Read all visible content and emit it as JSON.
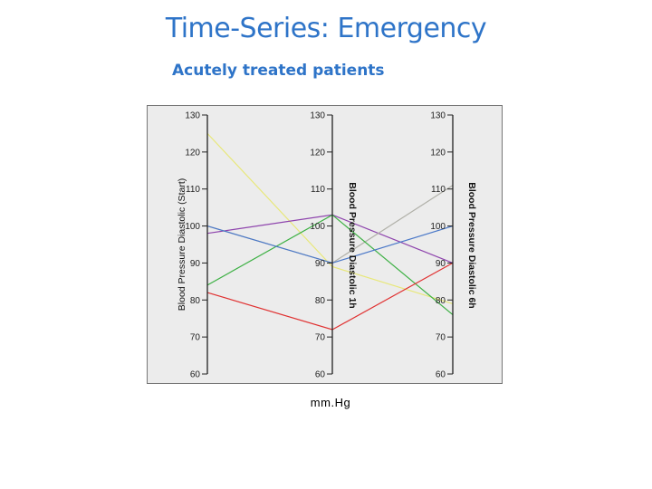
{
  "slide": {
    "title": "Time-Series: Emergency",
    "subtitle": "Acutely treated patients",
    "unit_label": "mm.Hg"
  },
  "chart_data": {
    "type": "parallel-coordinates",
    "axes": [
      {
        "label": "Blood Pressure Diastolic (Start)",
        "range": [
          60,
          130
        ],
        "tick_labels": [
          "130",
          "120",
          "110",
          "100",
          "90",
          "80",
          "70",
          "60"
        ],
        "tick_values": [
          130,
          120,
          110,
          100,
          90,
          80,
          70,
          60
        ]
      },
      {
        "label": "Blood Pressure Diastolic 1h",
        "range": [
          60,
          130
        ],
        "tick_labels": [
          "130",
          "120",
          "110",
          "100",
          "90",
          "80",
          "70",
          "60"
        ],
        "tick_values": [
          130,
          120,
          110,
          100,
          90,
          80,
          70,
          60
        ]
      },
      {
        "label": "Blood Pressure Diastolic 6h",
        "range": [
          60,
          130
        ],
        "tick_labels": [
          "130",
          "120",
          "110",
          "100",
          "90",
          "80",
          "70",
          "60"
        ],
        "tick_values": [
          130,
          120,
          110,
          100,
          90,
          80,
          70,
          60
        ]
      }
    ],
    "series": [
      {
        "color": "#e8e87a",
        "values": [
          125,
          89,
          79
        ]
      },
      {
        "color": "#8e44ad",
        "values": [
          98,
          103,
          90
        ]
      },
      {
        "color": "#b0b0a8",
        "values": [
          100,
          90,
          111
        ]
      },
      {
        "color": "#3cb043",
        "values": [
          84,
          103,
          76
        ]
      },
      {
        "color": "#e03131",
        "values": [
          82,
          72,
          90
        ]
      },
      {
        "color": "#4a78c8",
        "values": [
          100,
          90,
          100
        ]
      }
    ],
    "background": "#ececec",
    "grid": false
  }
}
